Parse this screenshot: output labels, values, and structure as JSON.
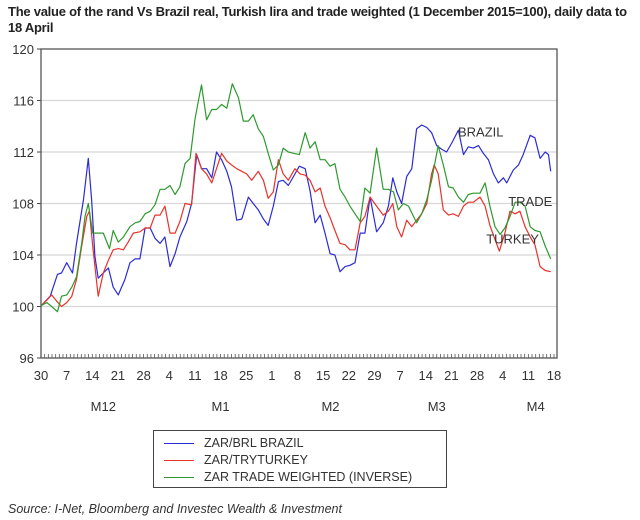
{
  "title": "The value of the rand Vs Brazil real, Turkish lira and trade weighted (1 December 2015=100), daily data to 18 April",
  "source": "Source: I-Net, Bloomberg and Investec Wealth & Investment",
  "chart_data": {
    "type": "line",
    "title": "The value of the rand Vs Brazil real, Turkish lira and trade weighted (1 December 2015=100), daily data to 18 April",
    "xlabel": "",
    "ylabel": "",
    "x_units": "days since 30 November 2015",
    "xlim": [
      0,
      140
    ],
    "ylim": [
      96,
      120
    ],
    "yticks": [
      96,
      100,
      104,
      108,
      112,
      116,
      120
    ],
    "ytick_labels": [
      "96",
      "100",
      "104",
      "108",
      "112",
      "116",
      "120"
    ],
    "xticks": [
      0,
      7,
      14,
      21,
      28,
      35,
      42,
      49,
      56,
      63,
      70,
      77,
      84,
      91,
      98,
      105,
      112,
      119,
      126,
      133,
      140
    ],
    "xtick_labels": [
      "30",
      "7",
      "14",
      "21",
      "28",
      "4",
      "11",
      "18",
      "25",
      "1",
      "8",
      "15",
      "22",
      "29",
      "7",
      "14",
      "21",
      "28",
      "4",
      "11",
      "18"
    ],
    "month_labels": [
      "M12",
      "M1",
      "M2",
      "M3",
      "M4"
    ],
    "grid": true,
    "legend_position": "bottom-center",
    "annotations": [
      "BRAZIL",
      "TRADE",
      "TURKEY"
    ],
    "series": [
      {
        "name": "ZAR/BRL BRAZIL",
        "color": "#2b2bd8",
        "x": [
          0.2,
          2.5,
          4.5,
          5.6,
          7,
          8.6,
          9.7,
          11.6,
          12.9,
          13.8,
          14.7,
          15.6,
          17,
          18.4,
          19.7,
          21.1,
          22.9,
          24.3,
          25.7,
          27,
          28.4,
          29.8,
          31.1,
          32.5,
          33.8,
          35.2,
          36.6,
          37.9,
          39.8,
          41.1,
          42.5,
          43.8,
          45.2,
          46.6,
          47.9,
          49.3,
          50.7,
          52,
          53.4,
          54.8,
          56.6,
          57.9,
          59.3,
          60.7,
          62,
          63.4,
          64.8,
          66.1,
          67.5,
          68.9,
          70.5,
          72.1,
          73.4,
          74.8,
          76.2,
          77.5,
          78.9,
          80.2,
          81.6,
          83,
          84.3,
          85.7,
          87.1,
          88.4,
          89.8,
          91.6,
          93.4,
          94.8,
          96,
          97.1,
          98.4,
          99.8,
          101.2,
          102.5,
          103.9,
          105.3,
          106.6,
          108,
          109.4,
          110.7,
          112.1,
          113.9,
          115.3,
          116.6,
          118,
          119.4,
          120.7,
          122.1,
          123.5,
          124.8,
          126.2,
          127.1,
          128.9,
          130.3,
          131.6,
          133.5,
          134.8,
          136.2,
          137.6,
          138.5,
          139.1
        ],
        "y": [
          100.1,
          100.8,
          102.5,
          102.6,
          103.4,
          102.6,
          104.9,
          108.3,
          111.5,
          108.3,
          103.9,
          102.2,
          102.6,
          103.0,
          101.5,
          100.9,
          102.1,
          103.4,
          103.7,
          103.7,
          106.1,
          106.1,
          105.3,
          104.9,
          105.4,
          103.1,
          104.1,
          105.4,
          106.6,
          108.0,
          111.8,
          110.7,
          110.7,
          110.0,
          112.0,
          111.4,
          110.5,
          109.3,
          106.7,
          106.8,
          108.5,
          108.0,
          107.5,
          106.8,
          106.3,
          107.8,
          109.7,
          109.8,
          109.4,
          110.1,
          110.9,
          110.7,
          109.0,
          106.5,
          107.1,
          105.7,
          104.1,
          104.0,
          102.7,
          103.1,
          103.2,
          103.4,
          105.7,
          105.7,
          108.5,
          105.8,
          106.5,
          107.8,
          110.0,
          108.9,
          108.0,
          110.1,
          110.7,
          113.8,
          114.1,
          113.9,
          113.5,
          112.5,
          112.2,
          112.0,
          112.7,
          113.7,
          111.8,
          112.4,
          112.3,
          112.5,
          111.9,
          111.4,
          110.3,
          109.6,
          110.0,
          109.6,
          110.6,
          111.0,
          111.8,
          113.3,
          113.1,
          111.5,
          112.0,
          111.8,
          110.5
        ]
      },
      {
        "name": "ZAR/TRYTURKEY",
        "color": "#e8322a",
        "x": [
          0.2,
          1.6,
          2.9,
          4.3,
          5.6,
          7,
          8.4,
          9.7,
          11.1,
          12.5,
          13.2,
          14.1,
          15.6,
          17,
          18.4,
          19.7,
          21.1,
          22.5,
          23.8,
          25.2,
          27,
          28.4,
          29.8,
          31.1,
          32.5,
          33.8,
          35.2,
          36.6,
          37.9,
          39.3,
          41.1,
          42.3,
          43.8,
          45.2,
          46.6,
          47.9,
          49.3,
          50.7,
          52,
          53.4,
          54.8,
          56.1,
          57.5,
          59.3,
          60.7,
          62,
          63.4,
          64.8,
          66.1,
          67.5,
          69.3,
          70.7,
          72.1,
          73.4,
          74.8,
          76.2,
          77.5,
          78.9,
          80.2,
          81.6,
          83,
          84.3,
          85.7,
          87.1,
          88.4,
          89.8,
          91.6,
          93.4,
          94.8,
          96,
          97.1,
          98.4,
          99.8,
          101.2,
          102.5,
          103.9,
          105.3,
          106.6,
          107.3,
          108.4,
          109.8,
          111.2,
          112.5,
          113.9,
          115.3,
          116.6,
          118,
          119.8,
          121.2,
          122.5,
          123.9,
          125.1,
          126.6,
          128,
          129.4,
          130.7,
          132.1,
          133.5,
          134.8,
          136.2,
          137.6,
          139.1
        ],
        "y": [
          100.1,
          100.5,
          100.9,
          100.4,
          100.0,
          100.3,
          100.8,
          102.1,
          104.7,
          107.0,
          107.4,
          104.7,
          100.8,
          102.6,
          103.6,
          104.4,
          104.5,
          104.4,
          105.0,
          105.7,
          105.8,
          106.1,
          106.1,
          107.1,
          107.1,
          107.8,
          105.7,
          105.7,
          106.6,
          108.0,
          107.9,
          111.9,
          110.7,
          110.3,
          109.6,
          110.7,
          111.9,
          111.3,
          111.0,
          110.7,
          110.5,
          110.3,
          109.8,
          110.5,
          109.8,
          108.4,
          108.9,
          111.4,
          110.3,
          109.8,
          110.7,
          110.3,
          110.2,
          109.8,
          108.9,
          109.2,
          107.8,
          106.9,
          105.9,
          104.9,
          104.8,
          104.4,
          104.4,
          106.5,
          107.0,
          108.5,
          107.8,
          107.1,
          107.4,
          108.0,
          106.2,
          105.4,
          106.7,
          106.2,
          106.7,
          107.2,
          108.0,
          110.3,
          111.0,
          110.3,
          107.5,
          107.1,
          107.2,
          107.0,
          107.8,
          108.1,
          108.1,
          108.5,
          107.8,
          106.3,
          105.2,
          104.3,
          105.7,
          107.4,
          107.2,
          107.4,
          106.2,
          105.4,
          104.8,
          103.1,
          102.8,
          102.7
        ]
      },
      {
        "name": "ZAR TRADE WEIGHTED (INVERSE)",
        "color": "#2e9a2e",
        "x": [
          0.2,
          1.6,
          2.9,
          4.5,
          5.6,
          7,
          8.4,
          9.7,
          11.1,
          12,
          12.9,
          14.1,
          15.6,
          17,
          18.7,
          19.7,
          21.1,
          22.5,
          24.3,
          25.7,
          27,
          28.4,
          29.8,
          31.1,
          32.5,
          33.8,
          35.2,
          36.6,
          37.9,
          39.3,
          40.7,
          42,
          42.9,
          43.8,
          45.2,
          46.6,
          47.9,
          49.3,
          50.7,
          52.2,
          53.9,
          55.2,
          56.6,
          57.9,
          59.3,
          60.7,
          62,
          63.4,
          64.8,
          66.1,
          67.5,
          68.9,
          70.5,
          72.1,
          73.4,
          74.8,
          76.2,
          77.5,
          78.9,
          80.2,
          81.6,
          83,
          84.3,
          85.7,
          87.1,
          88.4,
          89.8,
          91.6,
          93.4,
          94.8,
          96.2,
          97.5,
          98.9,
          100.3,
          102.5,
          103.9,
          105.3,
          106.6,
          108.4,
          109.8,
          111.2,
          112.5,
          113.9,
          115.3,
          116.6,
          118,
          119.8,
          121.2,
          122.5,
          123.9,
          125.3,
          126.6,
          128,
          129.4,
          130.7,
          132.1,
          133.5,
          134.8,
          136.2,
          137.6,
          139.1
        ],
        "y": [
          100.1,
          100.3,
          100.0,
          99.6,
          100.8,
          100.9,
          101.5,
          102.3,
          104.9,
          107.0,
          108.0,
          105.7,
          105.7,
          105.7,
          104.5,
          105.9,
          105.0,
          105.4,
          106.2,
          106.5,
          106.6,
          107.2,
          107.4,
          107.9,
          109.1,
          109.1,
          109.4,
          108.7,
          109.3,
          111.1,
          111.5,
          114.5,
          115.9,
          117.2,
          114.5,
          115.3,
          115.3,
          115.7,
          115.4,
          117.3,
          116.2,
          114.4,
          114.4,
          114.9,
          113.8,
          113.2,
          111.9,
          110.6,
          111.0,
          112.3,
          112.0,
          111.9,
          111.8,
          113.5,
          112.3,
          112.8,
          111.4,
          111.4,
          110.9,
          111.1,
          109.1,
          108.5,
          107.8,
          107.2,
          106.6,
          109.2,
          108.8,
          112.3,
          109.1,
          109.1,
          108.9,
          107.5,
          108.0,
          107.8,
          106.5,
          107.2,
          108.3,
          109.8,
          112.5,
          111.0,
          109.3,
          109.2,
          108.5,
          108.1,
          108.7,
          108.8,
          108.8,
          109.6,
          107.8,
          106.2,
          105.6,
          106.1,
          107.0,
          108.1,
          108.1,
          107.8,
          106.2,
          105.9,
          105.8,
          104.7,
          103.7
        ]
      }
    ]
  }
}
